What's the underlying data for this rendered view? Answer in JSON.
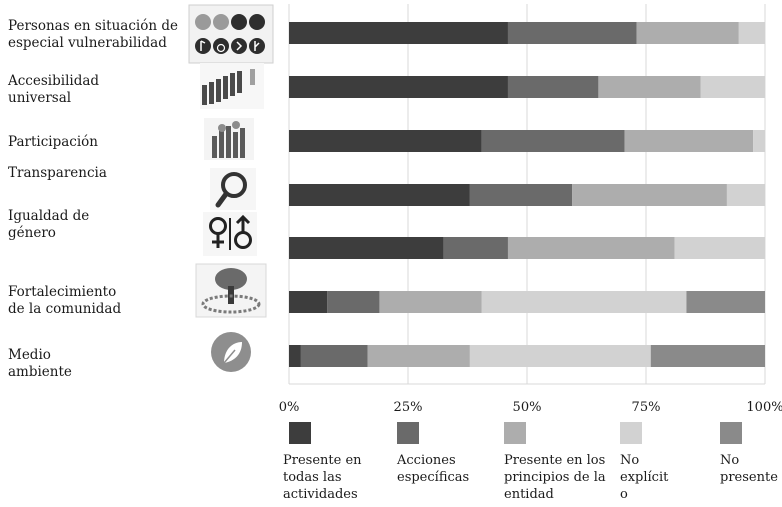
{
  "chart_data": {
    "type": "bar",
    "orientation": "horizontal",
    "stacked": true,
    "percent_axis": true,
    "categories": [
      "Personas en situación de\nespecial vulnerabilidad",
      "Accesibilidad\nuniversal",
      "Participación",
      "Transparencia",
      "Igualdad de\ngénero",
      "Fortalecimiento\nde la comunidad",
      "Medio\nambiente"
    ],
    "category_icons": [
      "disability-icons",
      "figures-crowd-icon",
      "raised-hands-icon",
      "magnifier-icon",
      "gender-symbols-icon",
      "community-tree-icon",
      "leaf-icon"
    ],
    "series": [
      {
        "name": "Presente en\ntodas las\nactividades",
        "color": "#3d3d3d",
        "values": [
          46,
          46,
          40.5,
          38,
          32.5,
          8,
          2.5
        ]
      },
      {
        "name": "Acciones\nespecíficas",
        "color": "#6a6a6a",
        "values": [
          27,
          19,
          30,
          21.5,
          13.5,
          11,
          14
        ]
      },
      {
        "name": "Presente en los\nprincipios de la\nentidad",
        "color": "#adadad",
        "values": [
          21.5,
          21.5,
          27,
          32.5,
          35,
          21.5,
          21.5
        ]
      },
      {
        "name": "No\nexplícit\no",
        "color": "#d2d2d2",
        "values": [
          5.5,
          13.5,
          2.5,
          8,
          19,
          43,
          38
        ]
      },
      {
        "name": "No\npresente",
        "color": "#8a8a8a",
        "values": [
          0,
          0,
          0,
          0,
          0,
          16.5,
          24
        ]
      }
    ],
    "x_ticks": [
      "0%",
      "25%",
      "50%",
      "75%",
      "100%"
    ],
    "xlim": [
      0,
      100
    ],
    "grid": "vertical",
    "legend": "bottom"
  }
}
